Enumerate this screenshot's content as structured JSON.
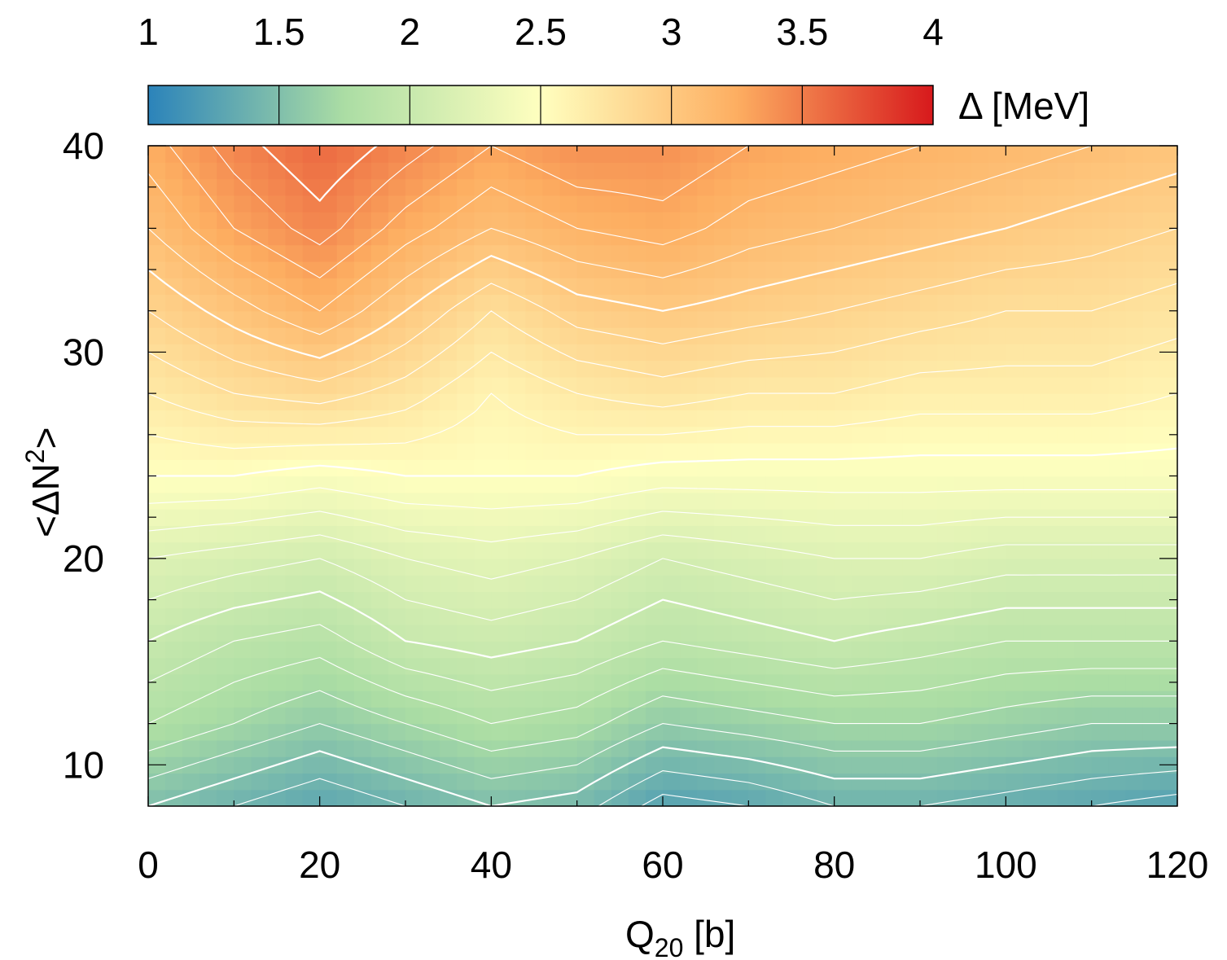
{
  "chart_data": {
    "type": "heatmap",
    "title": "",
    "xlabel": "Q",
    "xlabel_subscript": "20",
    "xlabel_unit": "[b]",
    "ylabel": "<ΔN",
    "ylabel_superscript": "2",
    "ylabel_suffix": ">",
    "xlim": [
      0,
      120
    ],
    "ylim": [
      8,
      40
    ],
    "x_ticks": [
      0,
      20,
      40,
      60,
      80,
      100,
      120
    ],
    "x_tick_labels": [
      "0",
      "20",
      "40",
      "60",
      "80",
      "100",
      "120"
    ],
    "y_ticks": [
      10,
      20,
      30,
      40
    ],
    "y_tick_labels": [
      "10",
      "20",
      "30",
      "40"
    ],
    "colorbar": {
      "label": "Δ [MeV]",
      "range": [
        1,
        4
      ],
      "ticks": [
        1,
        1.5,
        2,
        2.5,
        3,
        3.5,
        4
      ],
      "tick_labels": [
        "1",
        "1.5",
        "2",
        "2.5",
        "3",
        "3.5",
        "4"
      ],
      "colors": [
        "#2b83ba",
        "#abdda4",
        "#ffffbf",
        "#fdae61",
        "#d7191c"
      ],
      "placement": "top"
    },
    "contour_color": "#ffffff",
    "description_values": {
      "x": [
        0,
        10,
        20,
        30,
        40,
        50,
        60,
        70,
        80,
        90,
        100,
        110,
        120
      ],
      "y": [
        8,
        12,
        16,
        20,
        24,
        28,
        32,
        36,
        40
      ],
      "z": [
        [
          1.5,
          1.4,
          1.3,
          1.4,
          1.5,
          1.45,
          1.25,
          1.3,
          1.4,
          1.4,
          1.35,
          1.3,
          1.25
        ],
        [
          1.8,
          1.7,
          1.6,
          1.7,
          1.8,
          1.75,
          1.6,
          1.65,
          1.7,
          1.7,
          1.65,
          1.6,
          1.6
        ],
        [
          2.0,
          1.9,
          1.85,
          2.0,
          2.05,
          2.0,
          1.9,
          1.95,
          2.0,
          1.95,
          1.9,
          1.9,
          1.9
        ],
        [
          2.2,
          2.15,
          2.1,
          2.2,
          2.25,
          2.2,
          2.1,
          2.15,
          2.2,
          2.2,
          2.15,
          2.15,
          2.15
        ],
        [
          2.5,
          2.5,
          2.45,
          2.5,
          2.5,
          2.5,
          2.45,
          2.45,
          2.45,
          2.45,
          2.45,
          2.45,
          2.45
        ],
        [
          2.7,
          2.8,
          2.85,
          2.75,
          2.6,
          2.7,
          2.75,
          2.7,
          2.7,
          2.65,
          2.65,
          2.65,
          2.6
        ],
        [
          2.9,
          3.05,
          3.2,
          3.0,
          2.8,
          2.95,
          3.0,
          2.95,
          2.9,
          2.85,
          2.8,
          2.8,
          2.75
        ],
        [
          3.1,
          3.3,
          3.45,
          3.25,
          3.1,
          3.2,
          3.25,
          3.15,
          3.1,
          3.05,
          3.0,
          2.95,
          2.9
        ],
        [
          3.25,
          3.45,
          3.6,
          3.45,
          3.3,
          3.4,
          3.4,
          3.3,
          3.25,
          3.2,
          3.15,
          3.1,
          3.05
        ]
      ]
    }
  }
}
